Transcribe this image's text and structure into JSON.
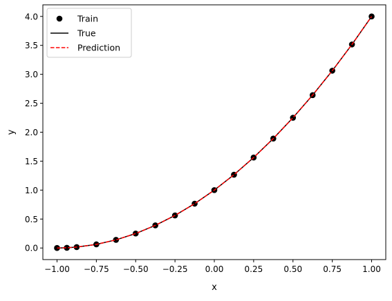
{
  "chart_data": {
    "type": "line",
    "title": "",
    "xlabel": "x",
    "ylabel": "y",
    "xlim": [
      -1.09,
      1.09
    ],
    "ylim": [
      -0.2,
      4.2
    ],
    "x_ticks": [
      -1.0,
      -0.75,
      -0.5,
      -0.25,
      0.0,
      0.25,
      0.5,
      0.75,
      1.0
    ],
    "x_tick_labels": [
      "−1.00",
      "−0.75",
      "−0.50",
      "−0.25",
      "0.00",
      "0.25",
      "0.50",
      "0.75",
      "1.00"
    ],
    "y_ticks": [
      0.0,
      0.5,
      1.0,
      1.5,
      2.0,
      2.5,
      3.0,
      3.5,
      4.0
    ],
    "y_tick_labels": [
      "0.0",
      "0.5",
      "1.0",
      "1.5",
      "2.0",
      "2.5",
      "3.0",
      "3.5",
      "4.0"
    ],
    "grid": false,
    "legend_position": "top-left",
    "series": [
      {
        "name": "Train",
        "style": "markers",
        "color": "#000000",
        "x": [
          -1.0,
          -0.9375,
          -0.875,
          -0.75,
          -0.625,
          -0.5,
          -0.375,
          -0.25,
          -0.125,
          0.0,
          0.125,
          0.25,
          0.375,
          0.5,
          0.625,
          0.75,
          0.875,
          1.0
        ],
        "y": [
          0.0,
          0.0039,
          0.0156,
          0.0625,
          0.1406,
          0.25,
          0.3906,
          0.5625,
          0.7656,
          1.0,
          1.2656,
          1.5625,
          1.8906,
          2.25,
          2.6406,
          3.0625,
          3.5156,
          4.0
        ]
      },
      {
        "name": "True",
        "style": "solid",
        "color": "#000000",
        "x": [
          -1.0,
          -0.9375,
          -0.875,
          -0.75,
          -0.625,
          -0.5,
          -0.375,
          -0.25,
          -0.125,
          0.0,
          0.125,
          0.25,
          0.375,
          0.5,
          0.625,
          0.75,
          0.875,
          1.0
        ],
        "y": [
          0.0,
          0.0039,
          0.0156,
          0.0625,
          0.1406,
          0.25,
          0.3906,
          0.5625,
          0.7656,
          1.0,
          1.2656,
          1.5625,
          1.8906,
          2.25,
          2.6406,
          3.0625,
          3.5156,
          4.0
        ]
      },
      {
        "name": "Prediction",
        "style": "dashed",
        "color": "#ff0000",
        "x": [
          -1.0,
          -0.9375,
          -0.875,
          -0.75,
          -0.625,
          -0.5,
          -0.375,
          -0.25,
          -0.125,
          0.0,
          0.125,
          0.25,
          0.375,
          0.5,
          0.625,
          0.75,
          0.875,
          1.0
        ],
        "y": [
          0.0,
          0.0039,
          0.0156,
          0.0625,
          0.1406,
          0.25,
          0.3906,
          0.5625,
          0.7656,
          1.0,
          1.2656,
          1.5625,
          1.8906,
          2.25,
          2.6406,
          3.0625,
          3.5156,
          4.0
        ]
      }
    ]
  }
}
